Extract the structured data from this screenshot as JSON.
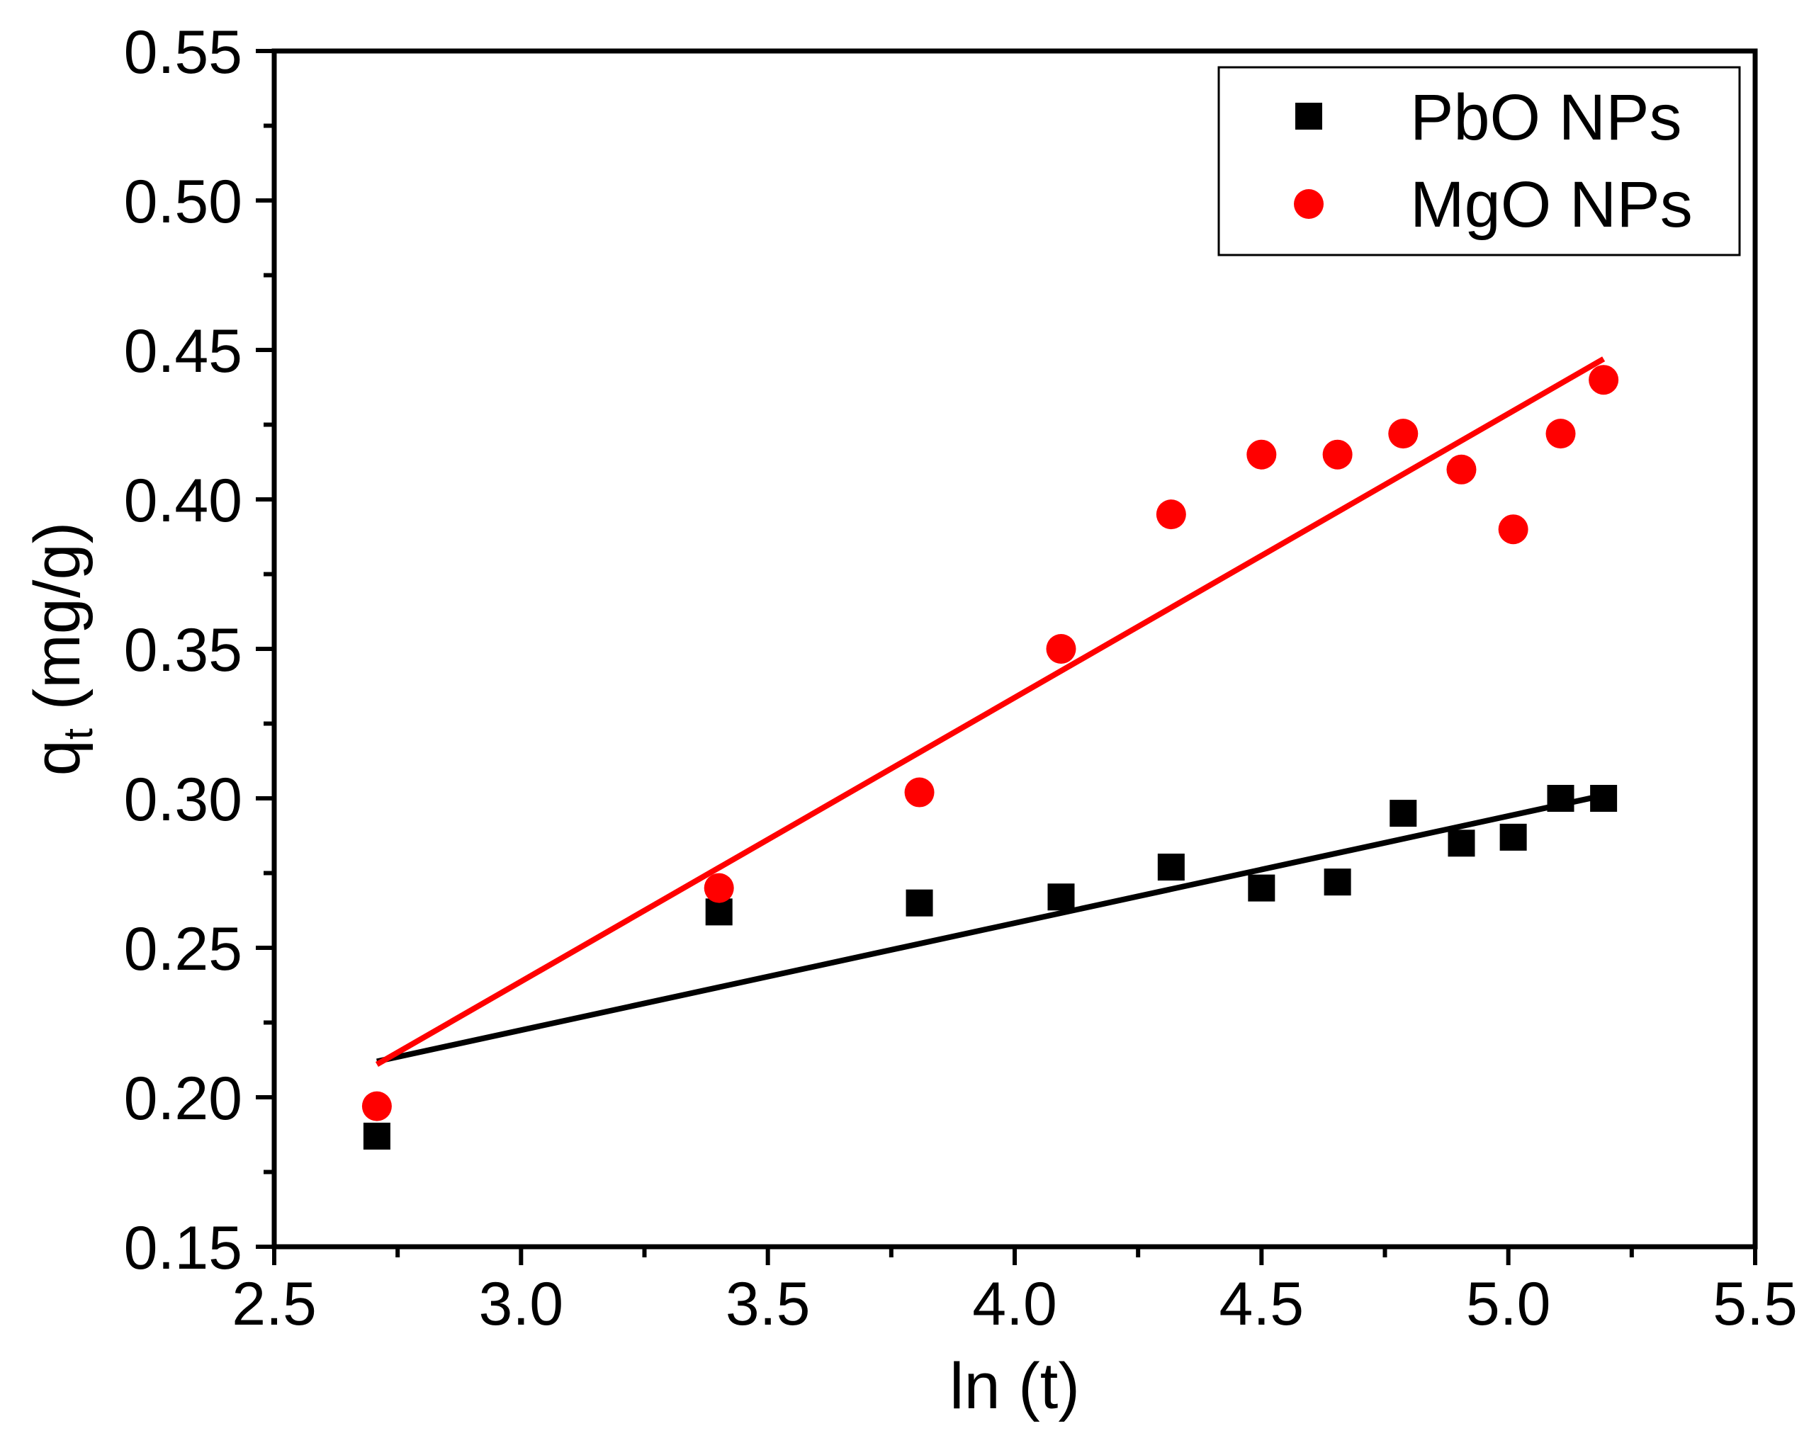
{
  "chart_data": {
    "type": "scatter",
    "title": "",
    "xlabel": "ln (t)",
    "ylabel_main": "q",
    "ylabel_sub": "t",
    "ylabel_unit": " (mg/g)",
    "xlim": [
      2.5,
      5.5
    ],
    "ylim": [
      0.15,
      0.55
    ],
    "xticks": [
      "2.5",
      "3.0",
      "3.5",
      "4.0",
      "4.5",
      "5.0",
      "5.5"
    ],
    "yticks": [
      "0.15",
      "0.20",
      "0.25",
      "0.30",
      "0.35",
      "0.40",
      "0.45",
      "0.50",
      "0.55"
    ],
    "grid": false,
    "legend_position": "top-right",
    "series": [
      {
        "name": "PbO NPs",
        "marker": "square",
        "color": "#000000",
        "x": [
          2.708,
          3.401,
          3.807,
          4.094,
          4.317,
          4.5,
          4.654,
          4.787,
          4.905,
          5.01,
          5.106,
          5.193
        ],
        "y": [
          0.187,
          0.262,
          0.265,
          0.267,
          0.277,
          0.27,
          0.272,
          0.295,
          0.285,
          0.287,
          0.3,
          0.3
        ],
        "fit": {
          "x": [
            2.708,
            5.193
          ],
          "y": [
            0.212,
            0.301
          ]
        }
      },
      {
        "name": "MgO NPs",
        "marker": "circle",
        "color": "#ff0000",
        "x": [
          2.708,
          3.401,
          3.807,
          4.094,
          4.317,
          4.5,
          4.654,
          4.787,
          4.905,
          5.01,
          5.106,
          5.193
        ],
        "y": [
          0.197,
          0.27,
          0.302,
          0.35,
          0.395,
          0.415,
          0.415,
          0.422,
          0.41,
          0.39,
          0.422,
          0.44
        ],
        "fit": {
          "x": [
            2.708,
            5.193
          ],
          "y": [
            0.211,
            0.447
          ]
        }
      }
    ]
  }
}
